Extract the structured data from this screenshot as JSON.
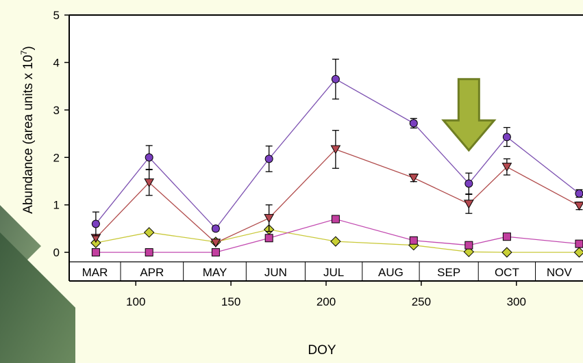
{
  "chart_data": {
    "type": "line",
    "title": "",
    "xlabel": "DOY",
    "ylabel": "Abundance (area units x 10",
    "ylabel_superscript": "7",
    "ylabel_close": ")",
    "xlim": [
      65,
      335
    ],
    "ylim": [
      -0.2,
      5
    ],
    "xticks": [
      100,
      150,
      200,
      250,
      300
    ],
    "yticks": [
      0,
      1,
      2,
      3,
      4,
      5
    ],
    "months": [
      {
        "label": "MAR",
        "start": 65,
        "end": 92
      },
      {
        "label": "APR",
        "start": 92,
        "end": 125
      },
      {
        "label": "MAY",
        "start": 125,
        "end": 158
      },
      {
        "label": "JUN",
        "start": 158,
        "end": 189
      },
      {
        "label": "JUL",
        "start": 189,
        "end": 219
      },
      {
        "label": "AUG",
        "start": 219,
        "end": 249
      },
      {
        "label": "SEP",
        "start": 249,
        "end": 280
      },
      {
        "label": "OCT",
        "start": 280,
        "end": 310
      },
      {
        "label": "NOV",
        "start": 310,
        "end": 335
      }
    ],
    "x": [
      79,
      107,
      142,
      170,
      205,
      246,
      275,
      295,
      333
    ],
    "series": [
      {
        "marker": "circle",
        "color": "#7b4fb0",
        "fill": "#7a3fbf",
        "values": [
          0.6,
          2.0,
          0.5,
          1.97,
          3.65,
          2.72,
          1.45,
          2.43,
          1.24
        ],
        "errors": [
          0.25,
          0.25,
          0.05,
          0.27,
          0.42,
          0.1,
          0.22,
          0.2,
          0.08
        ]
      },
      {
        "marker": "triangle-down",
        "color": "#b04a4a",
        "fill": "#b5484f",
        "values": [
          0.3,
          1.47,
          0.2,
          0.72,
          2.17,
          1.57,
          1.02,
          1.8,
          0.98
        ],
        "errors": [
          0.0,
          0.27,
          0.0,
          0.28,
          0.4,
          0.08,
          0.2,
          0.17,
          0.08
        ]
      },
      {
        "marker": "square",
        "color": "#c24ab0",
        "fill": "#c23f9f",
        "values": [
          0.0,
          0.0,
          0.0,
          0.3,
          0.7,
          0.25,
          0.15,
          0.33,
          0.18
        ],
        "errors": [
          0,
          0,
          0,
          0,
          0,
          0,
          0,
          0,
          0
        ]
      },
      {
        "marker": "diamond",
        "color": "#c9c93a",
        "fill": "#c8cf35",
        "values": [
          0.2,
          0.42,
          0.22,
          0.48,
          0.23,
          0.15,
          0.01,
          0.0,
          0.0
        ],
        "errors": [
          0,
          0,
          0,
          0,
          0,
          0,
          0,
          0,
          0
        ]
      }
    ],
    "annotation": {
      "type": "down-arrow",
      "x": 275,
      "y_top": 3.65,
      "y_bottom": 2.15,
      "color": "#a3b23a",
      "stroke": "#6f7e23"
    }
  },
  "colors": {
    "background": "#fbfde6",
    "left_panel": "#4c6b4a"
  }
}
